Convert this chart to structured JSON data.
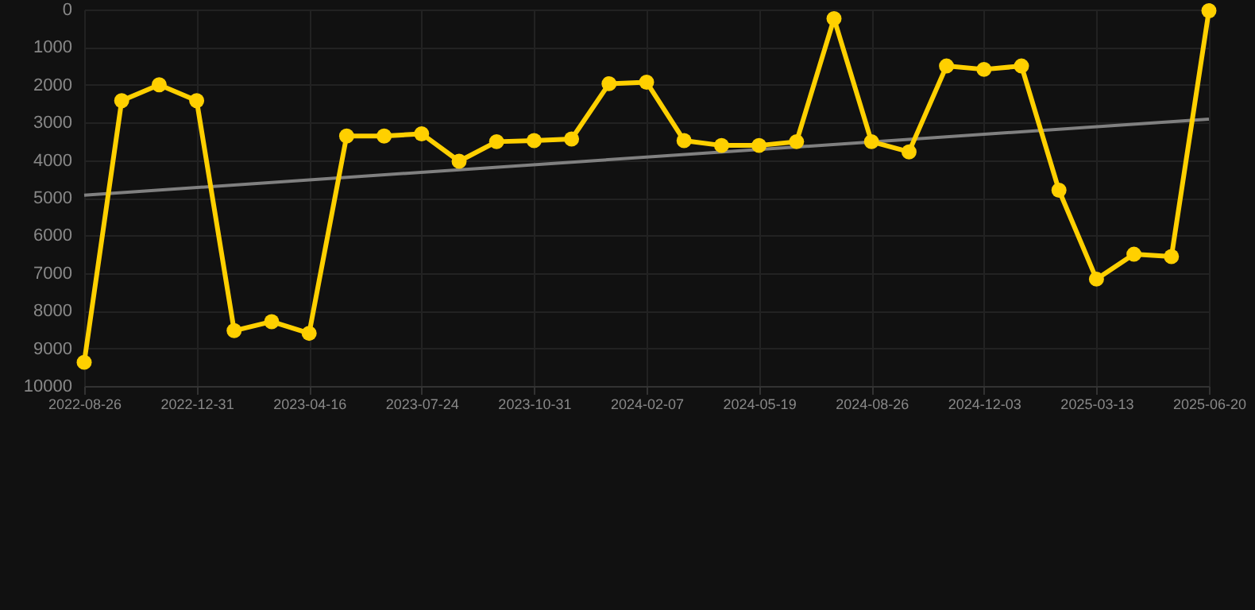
{
  "chart_data": {
    "type": "line",
    "categories": [
      "2022-08-26",
      null,
      null,
      "2022-12-31",
      null,
      null,
      "2023-04-16",
      null,
      null,
      "2023-07-24",
      null,
      null,
      "2023-10-31",
      null,
      null,
      "2024-02-07",
      null,
      null,
      "2024-05-19",
      null,
      null,
      "2024-08-26",
      null,
      null,
      "2024-12-03",
      null,
      null,
      "2025-03-13",
      null,
      null,
      "2025-06-20"
    ],
    "series": [
      {
        "color": "#ffd000",
        "marker": "circle",
        "values": [
          9370,
          2420,
          2000,
          2420,
          8530,
          8290,
          8600,
          3360,
          3360,
          3300,
          4030,
          3510,
          3480,
          3440,
          1970,
          1930,
          3480,
          3610,
          3610,
          3510,
          240,
          3510,
          3780,
          1500,
          1590,
          1500,
          4800,
          7160,
          6500,
          6560,
          30
        ]
      },
      {
        "type": "line",
        "color": "#808080",
        "marker": "none",
        "values": [
          4930,
          null,
          null,
          null,
          null,
          null,
          null,
          null,
          null,
          null,
          null,
          null,
          null,
          null,
          null,
          null,
          null,
          null,
          null,
          null,
          null,
          null,
          null,
          null,
          null,
          null,
          null,
          null,
          null,
          null,
          2910
        ]
      }
    ],
    "ylim": [
      10000,
      0
    ],
    "yticks": [
      0,
      1000,
      2000,
      3000,
      4000,
      5000,
      6000,
      7000,
      8000,
      9000,
      10000
    ],
    "grid": true
  }
}
